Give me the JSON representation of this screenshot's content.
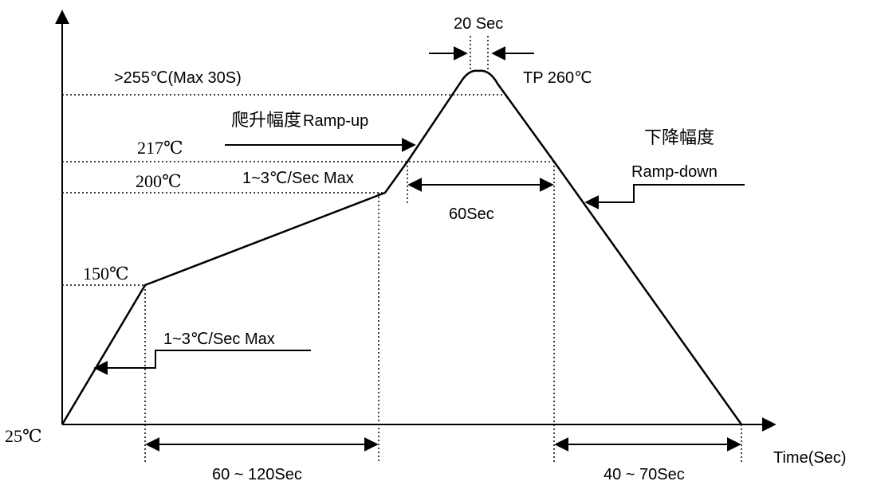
{
  "chart_data": {
    "type": "line",
    "title": "",
    "xlabel": "Time(Sec)",
    "ylabel": "",
    "legend": "none",
    "grid": false,
    "series": [
      {
        "points": [
          {
            "stage": "start",
            "temp_c": 25
          },
          {
            "stage": "preheat-end",
            "temp_c": 150
          },
          {
            "stage": "soak-end",
            "temp_c": 200
          },
          {
            "stage": "liquidus",
            "temp_c": 217
          },
          {
            "stage": "peak",
            "temp_c": 260
          },
          {
            "stage": "liquidus",
            "temp_c": 217
          },
          {
            "stage": "end",
            "temp_c": 25
          }
        ]
      }
    ],
    "temperature_levels": {
      "t25": "25℃",
      "t150": "150℃",
      "t200": "200℃",
      "t217": "217℃",
      "t255": ">255℃(Max 30S)"
    },
    "annotations": {
      "peak_window": "20 Sec",
      "peak_temp": "TP 260℃",
      "ramp_up_cn": "爬升幅度",
      "ramp_up_en": "Ramp-up",
      "ramp_up_rate": "1~3℃/Sec Max",
      "preheat_rate": "1~3℃/Sec Max",
      "ramp_down_cn": "下降幅度",
      "ramp_down_en": "Ramp-down",
      "time_above_liquidus": "60Sec",
      "soak_time": "60 ~ 120Sec",
      "cool_time": "40 ~ 70Sec"
    }
  }
}
